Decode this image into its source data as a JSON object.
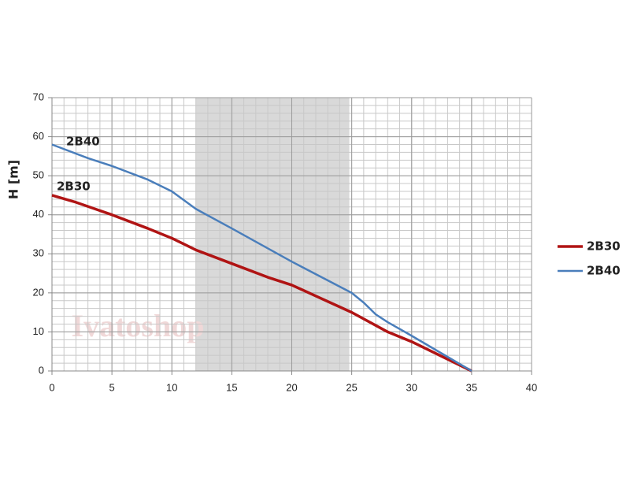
{
  "chart_data": {
    "type": "line",
    "y_label": "H [m]",
    "watermark": "Ivatoshop",
    "xlim": [
      0,
      40
    ],
    "xticks": [
      0,
      5,
      10,
      15,
      20,
      25,
      30,
      35,
      40
    ],
    "ylim": [
      0,
      70
    ],
    "yticks": [
      0,
      10,
      20,
      30,
      40,
      50,
      60,
      70
    ],
    "minor_grid": {
      "x": 1,
      "y": 2
    },
    "shaded_range": [
      12,
      24.8
    ],
    "grid": true,
    "series": [
      {
        "name": "2B30",
        "color": "#b01414",
        "x": [
          0,
          2,
          5,
          8,
          10,
          12,
          15,
          18,
          20,
          22,
          25,
          28,
          30,
          35
        ],
        "values": [
          45,
          43.2,
          40,
          36.5,
          34,
          31,
          27.5,
          24,
          22,
          19.2,
          15,
          10,
          7.5,
          0
        ]
      },
      {
        "name": "2B40",
        "color": "#4a7ebb",
        "x": [
          0,
          3,
          5,
          8,
          10,
          12,
          15,
          20,
          25,
          26,
          27,
          28,
          30,
          35
        ],
        "values": [
          58,
          54.5,
          52.5,
          49,
          46,
          41.5,
          36.5,
          28,
          20,
          17.5,
          14.5,
          12.5,
          9,
          0
        ]
      }
    ]
  }
}
